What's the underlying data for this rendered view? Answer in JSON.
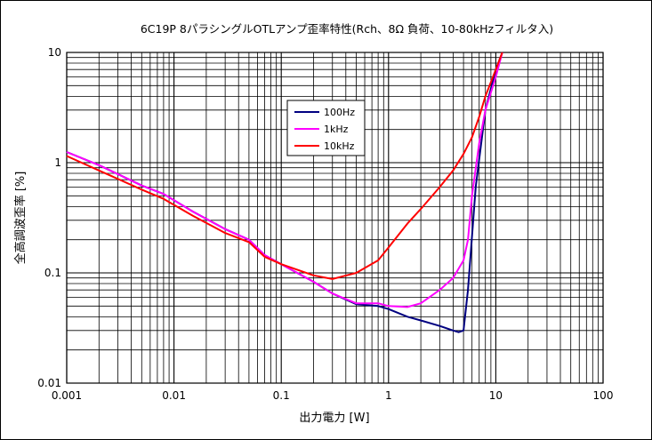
{
  "chart_data": {
    "type": "line",
    "title": "6C19P 8パラシングルOTLアンプ歪率特性(Rch、8Ω 負荷、10-80kHzフィルタ入)",
    "xlabel": "出力電力 [W]",
    "ylabel": "全高調波歪率 [%]",
    "x_scale": "log",
    "y_scale": "log",
    "xlim": [
      0.001,
      100
    ],
    "ylim": [
      0.01,
      10
    ],
    "x_ticks": [
      "0.001",
      "0.01",
      "0.1",
      "1",
      "10",
      "100"
    ],
    "y_ticks": [
      "0.01",
      "0.1",
      "1",
      "10"
    ],
    "grid": true,
    "legend_position": "upper-left-center",
    "colors": {
      "plot_background": "#ffffff",
      "grid": "#000000"
    },
    "series": [
      {
        "name": "100Hz",
        "color": "#000080",
        "x": [
          0.001,
          0.002,
          0.005,
          0.008,
          0.015,
          0.03,
          0.05,
          0.07,
          0.1,
          0.2,
          0.3,
          0.5,
          0.8,
          1.0,
          1.5,
          2.0,
          3.0,
          4.0,
          4.5,
          5.0,
          5.5,
          6.5,
          8.0,
          10.0,
          11.5
        ],
        "values": [
          1.25,
          0.95,
          0.62,
          0.52,
          0.36,
          0.25,
          0.2,
          0.145,
          0.12,
          0.083,
          0.065,
          0.052,
          0.05,
          0.047,
          0.04,
          0.037,
          0.033,
          0.03,
          0.029,
          0.03,
          0.07,
          0.6,
          3.0,
          7.0,
          10.0
        ]
      },
      {
        "name": "1kHz",
        "color": "#ff00ff",
        "x": [
          0.001,
          0.002,
          0.005,
          0.008,
          0.015,
          0.03,
          0.05,
          0.07,
          0.1,
          0.2,
          0.3,
          0.5,
          0.8,
          1.0,
          1.5,
          2.0,
          3.0,
          4.0,
          5.0,
          5.5,
          6.0,
          7.0,
          8.0,
          10.0,
          11.5
        ],
        "values": [
          1.25,
          0.95,
          0.62,
          0.52,
          0.36,
          0.25,
          0.2,
          0.145,
          0.12,
          0.083,
          0.065,
          0.053,
          0.053,
          0.05,
          0.049,
          0.053,
          0.07,
          0.09,
          0.13,
          0.2,
          0.5,
          1.5,
          3.0,
          6.0,
          10.0
        ]
      },
      {
        "name": "10kHz",
        "color": "#ff0000",
        "x": [
          0.001,
          0.002,
          0.005,
          0.008,
          0.015,
          0.03,
          0.05,
          0.07,
          0.1,
          0.2,
          0.3,
          0.5,
          0.8,
          1.0,
          1.5,
          2.0,
          3.0,
          4.0,
          5.0,
          6.0,
          7.0,
          8.0,
          10.0,
          11.5
        ],
        "values": [
          1.15,
          0.85,
          0.57,
          0.47,
          0.33,
          0.23,
          0.19,
          0.14,
          0.12,
          0.095,
          0.088,
          0.1,
          0.13,
          0.17,
          0.28,
          0.38,
          0.6,
          0.85,
          1.2,
          1.7,
          2.6,
          4.0,
          7.0,
          10.0
        ]
      }
    ]
  }
}
